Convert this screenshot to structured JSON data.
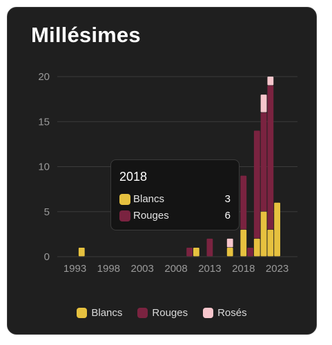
{
  "title": "Millésimes",
  "colors": {
    "blancs": "#e6c13f",
    "rouges": "#7a2340",
    "roses": "#f7c6cc",
    "card_bg": "#1f1f1f",
    "grid": "#3b3b3b",
    "axis_text": "#9a9a9a"
  },
  "chart_data": {
    "type": "bar",
    "stacked": true,
    "x": [
      1993,
      1994,
      1995,
      1996,
      1997,
      1998,
      1999,
      2000,
      2001,
      2002,
      2003,
      2004,
      2005,
      2006,
      2007,
      2008,
      2009,
      2010,
      2011,
      2012,
      2013,
      2014,
      2015,
      2016,
      2017,
      2018,
      2019,
      2020,
      2021,
      2022,
      2023
    ],
    "xticks": [
      "1993",
      "1998",
      "2003",
      "2008",
      "2013",
      "2018",
      "2023"
    ],
    "yticks": [
      "0",
      "5",
      "10",
      "15",
      "20"
    ],
    "ylim": [
      0,
      21
    ],
    "grid": true,
    "legend_position": "bottom",
    "series": [
      {
        "name": "Blancs",
        "color": "#e6c13f",
        "values": [
          0,
          1,
          0,
          0,
          0,
          0,
          0,
          0,
          0,
          0,
          0,
          0,
          0,
          0,
          0,
          0,
          0,
          0,
          1,
          0,
          0,
          0,
          0,
          1,
          0,
          3,
          0,
          2,
          5,
          3,
          6
        ]
      },
      {
        "name": "Rouges",
        "color": "#7a2340",
        "values": [
          0,
          0,
          0,
          0,
          0,
          0,
          0,
          0,
          0,
          0,
          0,
          0,
          0,
          0,
          0,
          0,
          0,
          1,
          0,
          0,
          2,
          0,
          0,
          0,
          0,
          6,
          1,
          12,
          11,
          16,
          0
        ]
      },
      {
        "name": "Rosés",
        "color": "#f7c6cc",
        "values": [
          0,
          0,
          0,
          0,
          0,
          0,
          0,
          0,
          0,
          0,
          0,
          0,
          0,
          0,
          0,
          0,
          0,
          0,
          0,
          0,
          0,
          0,
          0,
          1,
          0,
          0,
          0,
          0,
          2,
          1,
          0
        ]
      }
    ]
  },
  "tooltip": {
    "title": "2018",
    "rows": [
      {
        "label": "Blancs",
        "value": "3",
        "color": "#e6c13f"
      },
      {
        "label": "Rouges",
        "value": "6",
        "color": "#7a2340"
      }
    ]
  },
  "legend": [
    {
      "label": "Blancs",
      "color": "#e6c13f"
    },
    {
      "label": "Rouges",
      "color": "#7a2340"
    },
    {
      "label": "Rosés",
      "color": "#f7c6cc"
    }
  ]
}
